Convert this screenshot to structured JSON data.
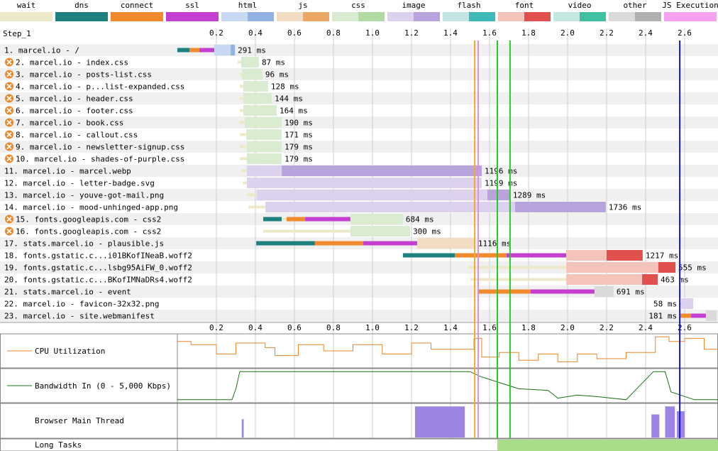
{
  "chart_data": {
    "type": "waterfall",
    "step_label": "Step_1",
    "legend": [
      {
        "name": "wait",
        "color": "#ece9c8"
      },
      {
        "name": "dns",
        "color": "#1f8080"
      },
      {
        "name": "connect",
        "color": "#f08a2c"
      },
      {
        "name": "ssl",
        "color": "#c43fd0"
      },
      {
        "name": "html",
        "light": "#c9d8f2",
        "dark": "#93b2e4"
      },
      {
        "name": "js",
        "light": "#f2dcc2",
        "dark": "#eaa864"
      },
      {
        "name": "css",
        "light": "#d9ecd2",
        "dark": "#b1dba2"
      },
      {
        "name": "image",
        "light": "#ddd2ee",
        "dark": "#b9a3dd"
      },
      {
        "name": "flash",
        "light": "#c2e4e4",
        "dark": "#3fb8b8"
      },
      {
        "name": "font",
        "light": "#f4c3ba",
        "dark": "#e0514d"
      },
      {
        "name": "video",
        "light": "#c2e8df",
        "dark": "#3fc0a2"
      },
      {
        "name": "other",
        "light": "#dadada",
        "dark": "#b0b0b0"
      },
      {
        "name": "JS Execution",
        "color": "#f6a2f0"
      }
    ],
    "xlim": [
      0,
      2.771
    ],
    "xticks": [
      0.2,
      0.4,
      0.6,
      0.8,
      {
        "value": 1,
        "label": "1.0"
      },
      1.2,
      1.4,
      1.6,
      1.8,
      {
        "value": 2,
        "label": "2.0"
      },
      2.2,
      2.4,
      2.6
    ],
    "grid": true,
    "requests": [
      {
        "label": "1. marcel.io - /",
        "content": "html",
        "render_blocking": false,
        "time": "291 ms",
        "segments": [
          [
            "dns",
            0,
            0.062
          ],
          [
            "connect",
            0.062,
            0.113
          ],
          [
            "ssl",
            0.113,
            0.189
          ],
          [
            "ttfb",
            0.189,
            0.273
          ],
          [
            "download",
            0.273,
            0.295
          ]
        ]
      },
      {
        "label": "2. marcel.io - index.css",
        "content": "css",
        "render_blocking": true,
        "time": "87 ms",
        "segments": [
          [
            "wait",
            0.309,
            0.327
          ],
          [
            "ttfb",
            0.327,
            0.418
          ]
        ]
      },
      {
        "label": "3. marcel.io - posts-list.css",
        "content": "css",
        "render_blocking": true,
        "time": "96 ms",
        "segments": [
          [
            "wait",
            0.32,
            0.331
          ],
          [
            "ttfb",
            0.331,
            0.436
          ]
        ]
      },
      {
        "label": "4. marcel.io - p...list-expanded.css",
        "content": "css",
        "render_blocking": true,
        "time": "128 ms",
        "segments": [
          [
            "wait",
            0.32,
            0.338
          ],
          [
            "ttfb",
            0.338,
            0.465
          ]
        ]
      },
      {
        "label": "5. marcel.io - header.css",
        "content": "css",
        "render_blocking": true,
        "time": "144 ms",
        "segments": [
          [
            "wait",
            0.32,
            0.338
          ],
          [
            "ttfb",
            0.338,
            0.484
          ]
        ]
      },
      {
        "label": "6. marcel.io - footer.css",
        "content": "css",
        "render_blocking": true,
        "time": "164 ms",
        "segments": [
          [
            "wait",
            0.32,
            0.338
          ],
          [
            "ttfb",
            0.338,
            0.509
          ]
        ]
      },
      {
        "label": "7. marcel.io - book.css",
        "content": "css",
        "render_blocking": true,
        "time": "190 ms",
        "segments": [
          [
            "wait",
            0.32,
            0.345
          ],
          [
            "ttfb",
            0.345,
            0.535
          ]
        ]
      },
      {
        "label": "8. marcel.io - callout.css",
        "content": "css",
        "render_blocking": true,
        "time": "171 ms",
        "segments": [
          [
            "wait",
            0.32,
            0.353
          ],
          [
            "ttfb",
            0.353,
            0.535
          ]
        ]
      },
      {
        "label": "9. marcel.io - newsletter-signup.css",
        "content": "css",
        "render_blocking": true,
        "time": "179 ms",
        "segments": [
          [
            "wait",
            0.32,
            0.356
          ],
          [
            "ttfb",
            0.356,
            0.535
          ]
        ]
      },
      {
        "label": "10. marcel.io - shades-of-purple.css",
        "content": "css",
        "render_blocking": true,
        "time": "179 ms",
        "segments": [
          [
            "wait",
            0.32,
            0.356
          ],
          [
            "ttfb",
            0.356,
            0.535
          ]
        ]
      },
      {
        "label": "11. marcel.io - marcel.webp",
        "content": "image",
        "render_blocking": false,
        "time": "1196 ms",
        "segments": [
          [
            "wait",
            0.327,
            0.356
          ],
          [
            "ttfb",
            0.356,
            0.535
          ],
          [
            "download",
            0.535,
            1.56
          ]
        ]
      },
      {
        "label": "12. marcel.io - letter-badge.svg",
        "content": "image",
        "render_blocking": false,
        "time": "1199 ms",
        "segments": [
          [
            "wait",
            0.335,
            0.356
          ],
          [
            "ttfb",
            0.356,
            1.56
          ]
        ]
      },
      {
        "label": "13. marcel.io - youve-got-mail.png",
        "content": "image",
        "render_blocking": false,
        "time": "1289 ms",
        "segments": [
          [
            "wait",
            0.356,
            0.407
          ],
          [
            "ttfb",
            0.407,
            1.589
          ],
          [
            "download",
            1.589,
            1.705
          ]
        ]
      },
      {
        "label": "14. marcel.io - mood-unhinged-app.png",
        "content": "image",
        "render_blocking": false,
        "time": "1736 ms",
        "segments": [
          [
            "wait",
            0.364,
            0.451
          ],
          [
            "ttfb",
            0.451,
            1.731
          ],
          [
            "download",
            1.731,
            2.196
          ]
        ]
      },
      {
        "label": "15. fonts.googleapis.com - css2",
        "content": "css",
        "render_blocking": true,
        "time": "684 ms",
        "segments": [
          [
            "dns",
            0.44,
            0.535
          ],
          [
            "wait",
            0.535,
            0.56
          ],
          [
            "connect",
            0.56,
            0.655
          ],
          [
            "ssl",
            0.655,
            0.887
          ],
          [
            "ttfb",
            0.887,
            1.156
          ]
        ]
      },
      {
        "label": "16. fonts.googleapis.com - css2",
        "content": "css",
        "render_blocking": true,
        "time": "300 ms",
        "segments": [
          [
            "wait",
            0.44,
            0.887
          ],
          [
            "ttfb",
            0.887,
            1.193
          ]
        ]
      },
      {
        "label": "17. stats.marcel.io - plausible.js",
        "content": "js",
        "render_blocking": false,
        "time": "1116 ms",
        "segments": [
          [
            "dns",
            0.404,
            0.705
          ],
          [
            "connect",
            0.705,
            0.953
          ],
          [
            "ssl",
            0.953,
            1.229
          ],
          [
            "ttfb",
            1.229,
            1.527
          ]
        ]
      },
      {
        "label": "18. fonts.gstatic.c...i01BKofINeaB.woff2",
        "content": "font",
        "render_blocking": false,
        "time": "1217 ms",
        "segments": [
          [
            "dns",
            1.156,
            1.422
          ],
          [
            "connect",
            1.422,
            1.687
          ],
          [
            "ssl",
            1.687,
            1.993
          ],
          [
            "ttfb",
            1.993,
            2.2
          ],
          [
            "download",
            2.2,
            2.385
          ]
        ]
      },
      {
        "label": "19. fonts.gstatic.c...lsbg95AiFW_0.woff2",
        "content": "font",
        "render_blocking": false,
        "time": "555 ms",
        "segments": [
          [
            "wait",
            1.491,
            1.993
          ],
          [
            "ttfb",
            1.993,
            2.465
          ],
          [
            "download",
            2.465,
            2.553
          ]
        ]
      },
      {
        "label": "20. fonts.gstatic.c...BKofIMNaDRs4.woff2",
        "content": "font",
        "render_blocking": false,
        "time": "463 ms",
        "segments": [
          [
            "wait",
            1.502,
            1.993
          ],
          [
            "ttfb",
            1.993,
            2.382
          ],
          [
            "download",
            2.382,
            2.462
          ]
        ]
      },
      {
        "label": "21. stats.marcel.io - event",
        "content": "other",
        "render_blocking": false,
        "time": "691 ms",
        "segments": [
          [
            "connect",
            1.538,
            1.811
          ],
          [
            "ssl",
            1.811,
            2.138
          ],
          [
            "ttfb",
            2.138,
            2.236
          ]
        ]
      },
      {
        "label": "22. marcel.io - favicon-32x32.png",
        "content": "image",
        "render_blocking": false,
        "time": "58 ms",
        "segments": [
          [
            "wait",
            2.575,
            2.582
          ],
          [
            "ttfb",
            2.582,
            2.644
          ]
        ]
      },
      {
        "label": "23. marcel.io - site.webmanifest",
        "content": "other",
        "render_blocking": false,
        "time": "181 ms",
        "segments": [
          [
            "connect",
            2.575,
            2.633
          ],
          [
            "ssl",
            2.633,
            2.709
          ],
          [
            "ttfb",
            2.709,
            2.764
          ]
        ]
      }
    ],
    "markers": [
      {
        "t": 1.524,
        "color": "#f0a830"
      },
      {
        "t": 1.542,
        "color": "#dd90d6"
      },
      {
        "t": 1.64,
        "color": "#28c828"
      },
      {
        "t": 1.705,
        "color": "#28c828"
      },
      {
        "t": 2.575,
        "color": "#1414d0"
      }
    ],
    "cpu": {
      "label": "CPU Utilization",
      "color": "#e8862a",
      "ylim": [
        0,
        100
      ],
      "t": [
        0,
        0.07,
        0.2,
        0.3,
        0.45,
        0.5,
        0.62,
        0.75,
        0.9,
        1.05,
        1.2,
        1.3,
        1.52,
        1.56,
        1.65,
        1.75,
        1.85,
        1.95,
        2.05,
        2.15,
        2.3,
        2.45,
        2.52,
        2.6,
        2.7
      ],
      "values": [
        80,
        70,
        40,
        75,
        60,
        35,
        70,
        50,
        70,
        40,
        75,
        55,
        90,
        30,
        45,
        20,
        40,
        15,
        40,
        25,
        45,
        95,
        80,
        90,
        55
      ]
    },
    "bandwidth": {
      "label": "Bandwidth In (0 - 5,000 Kbps)",
      "color": "#1a6e1a",
      "ylim": [
        0,
        100
      ],
      "t": [
        0,
        0.28,
        0.3,
        0.32,
        1.5,
        1.55,
        1.65,
        1.75,
        1.9,
        1.95,
        2.05,
        2.15,
        2.3,
        2.44,
        2.5,
        2.53,
        2.65,
        2.771
      ],
      "values": [
        5,
        5,
        40,
        95,
        95,
        80,
        60,
        40,
        35,
        10,
        20,
        15,
        5,
        95,
        95,
        30,
        5,
        5
      ]
    },
    "main_thread": {
      "label": "Browser Main Thread",
      "color": "#9b84e2",
      "ylim": [
        0,
        100
      ],
      "blocks": [
        [
          0.33,
          0.34,
          55
        ],
        [
          1.218,
          1.473,
          95
        ],
        [
          2.43,
          2.47,
          70
        ],
        [
          2.5,
          2.55,
          95
        ],
        [
          2.56,
          2.6,
          80
        ]
      ]
    },
    "long_tasks": {
      "label": "Long Tasks",
      "color": "#a8dc88",
      "blocks": [
        [
          1.64,
          2.771
        ]
      ]
    }
  }
}
